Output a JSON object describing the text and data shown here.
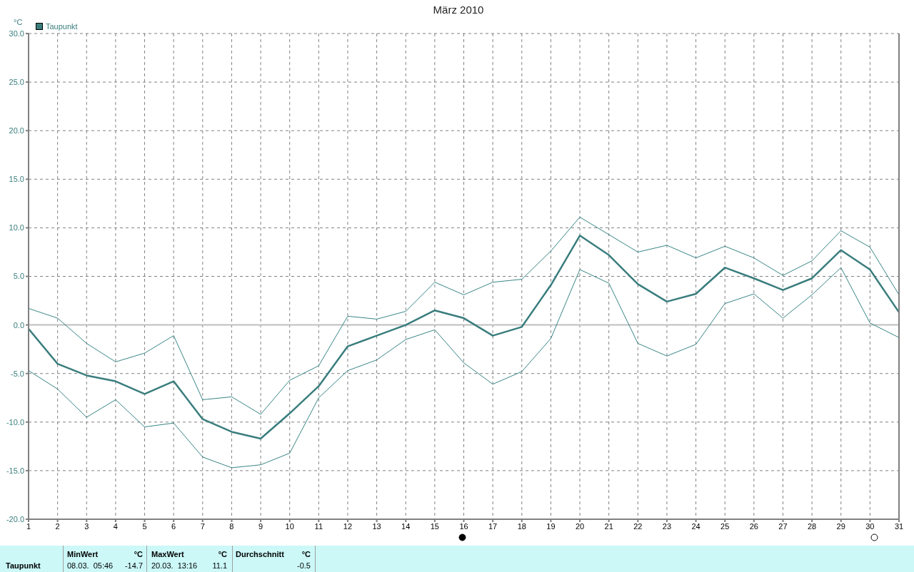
{
  "chart_data": {
    "type": "line",
    "title": "März 2010",
    "ylabel": "°C",
    "x": [
      1,
      2,
      3,
      4,
      5,
      6,
      7,
      8,
      9,
      10,
      11,
      12,
      13,
      14,
      15,
      16,
      17,
      18,
      19,
      20,
      21,
      22,
      23,
      24,
      25,
      26,
      27,
      28,
      29,
      30,
      31
    ],
    "series": [
      {
        "name": "Taupunkt",
        "color": "#3a7d7d",
        "values": [
          -0.4,
          -4.0,
          -5.2,
          -5.8,
          -7.1,
          -5.8,
          -9.7,
          -11.0,
          -11.7,
          -9.1,
          -6.3,
          -2.2,
          -1.1,
          0.0,
          1.5,
          0.7,
          -1.1,
          -0.2,
          4.1,
          9.2,
          7.2,
          4.2,
          2.4,
          3.2,
          5.9,
          4.8,
          3.6,
          4.8,
          7.7,
          5.7,
          1.3
        ]
      },
      {
        "color": "#3a8585",
        "values": [
          1.7,
          0.7,
          -1.9,
          -3.8,
          -2.9,
          -1.1,
          -7.7,
          -7.4,
          -9.2,
          -5.7,
          -4.2,
          0.9,
          0.6,
          1.4,
          4.4,
          3.1,
          4.4,
          4.7,
          7.6,
          11.1,
          9.3,
          7.5,
          8.2,
          6.9,
          8.1,
          6.9,
          5.1,
          6.6,
          9.7,
          8.0,
          3.1
        ]
      },
      {
        "color": "#3a8585",
        "values": [
          -4.7,
          -6.6,
          -9.5,
          -7.7,
          -10.5,
          -10.1,
          -13.6,
          -14.7,
          -14.4,
          -13.2,
          -7.5,
          -4.7,
          -3.6,
          -1.5,
          -0.5,
          -3.9,
          -6.1,
          -4.8,
          -1.4,
          5.7,
          4.3,
          -1.9,
          -3.2,
          -2.0,
          2.2,
          3.2,
          0.7,
          3.1,
          5.9,
          0.2,
          -1.3
        ]
      }
    ],
    "xlim": [
      1,
      31
    ],
    "xticks": [
      1,
      2,
      3,
      4,
      5,
      6,
      7,
      8,
      9,
      10,
      11,
      12,
      13,
      14,
      15,
      16,
      17,
      18,
      19,
      20,
      21,
      22,
      23,
      24,
      25,
      26,
      27,
      28,
      29,
      30,
      31
    ],
    "ylim": [
      -20,
      30
    ],
    "yticks": [
      {
        "value": -20,
        "label": "-20.0"
      },
      {
        "value": -15,
        "label": "-15.0"
      },
      {
        "value": -10,
        "label": "-10.0"
      },
      {
        "value": -5,
        "label": "-5.0"
      },
      {
        "value": 0,
        "label": "0.0"
      },
      {
        "value": 5,
        "label": "5.0"
      },
      {
        "value": 10,
        "label": "10.0"
      },
      {
        "value": 15,
        "label": "15.0"
      },
      {
        "value": 20,
        "label": "20.0"
      },
      {
        "value": 25,
        "label": "25.0"
      },
      {
        "value": 30,
        "label": "30.0"
      }
    ],
    "ref_lines": [
      {
        "axis": "y",
        "value": 0,
        "color": "#c0c0c0"
      }
    ],
    "grid": true,
    "legend": "top left",
    "marker": "none",
    "annotations": [
      "Taupunkt",
      "MinWert",
      "°C",
      "08.03.  05:46",
      "-14.7",
      "MaxWert",
      "°C",
      "20.03.  13:16",
      "11.1",
      "Durchschnitt",
      "°C",
      "-0.5"
    ]
  }
}
